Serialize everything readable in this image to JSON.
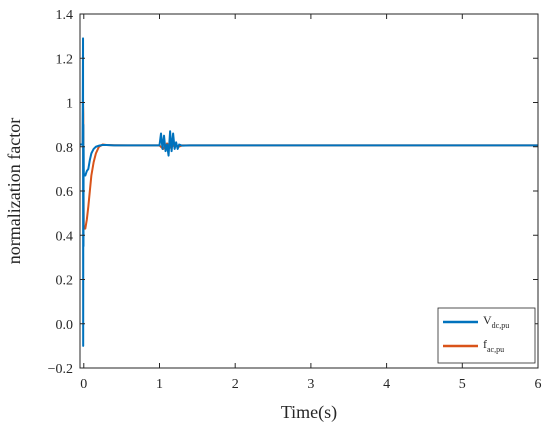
{
  "chart_data": {
    "type": "line",
    "title": "",
    "xlabel": "Time(s)",
    "ylabel": "normalization factor",
    "xlim": [
      -0.05,
      6
    ],
    "ylim": [
      -0.2,
      1.4
    ],
    "xticks": [
      "0",
      "1",
      "2",
      "3",
      "4",
      "5",
      "6"
    ],
    "yticks": [
      "−0.2",
      "0.0",
      "0.2",
      "0.4",
      "0.6",
      "0.8",
      "1",
      "1.2",
      "1.4"
    ],
    "grid": false,
    "legend_position": "bottom-right",
    "series": [
      {
        "name": "V",
        "name_sub": "dc,pu",
        "color": "#0072BD",
        "x": [
          -0.05,
          -0.03,
          -0.02,
          -0.015,
          -0.01,
          -0.008,
          -0.006,
          -0.004,
          -0.002,
          0.0,
          0.01,
          0.02,
          0.04,
          0.06,
          0.08,
          0.1,
          0.13,
          0.16,
          0.2,
          0.25,
          0.3,
          0.4,
          0.6,
          0.8,
          1.0,
          1.02,
          1.04,
          1.06,
          1.08,
          1.1,
          1.12,
          1.14,
          1.16,
          1.18,
          1.2,
          1.22,
          1.24,
          1.26,
          1.3,
          1.4,
          2.0,
          3.0,
          4.0,
          5.0,
          6.0
        ],
        "y": [
          0.81,
          0.81,
          0.81,
          0.81,
          1.29,
          -0.1,
          0.9,
          0.35,
          0.8,
          0.68,
          0.67,
          0.67,
          0.69,
          0.7,
          0.74,
          0.77,
          0.79,
          0.8,
          0.805,
          0.808,
          0.808,
          0.806,
          0.806,
          0.806,
          0.806,
          0.86,
          0.79,
          0.85,
          0.78,
          0.81,
          0.76,
          0.87,
          0.78,
          0.86,
          0.79,
          0.82,
          0.79,
          0.81,
          0.805,
          0.806,
          0.806,
          0.806,
          0.806,
          0.806,
          0.806
        ]
      },
      {
        "name": "f",
        "name_sub": "ac,pu",
        "color": "#D95319",
        "x": [
          -0.05,
          -0.03,
          -0.02,
          -0.015,
          -0.01,
          -0.007,
          -0.004,
          0.0,
          0.02,
          0.04,
          0.06,
          0.08,
          0.1,
          0.13,
          0.16,
          0.2,
          0.25,
          0.3,
          0.4,
          0.6,
          1.0,
          1.05,
          1.1,
          1.15,
          1.2,
          1.25,
          1.3,
          2.0,
          3.0,
          4.0,
          5.0,
          6.0
        ],
        "y": [
          0.81,
          0.81,
          0.81,
          0.81,
          1.0,
          0.95,
          0.6,
          0.43,
          0.43,
          0.47,
          0.53,
          0.6,
          0.67,
          0.73,
          0.77,
          0.8,
          0.81,
          0.808,
          0.807,
          0.806,
          0.806,
          0.79,
          0.815,
          0.795,
          0.812,
          0.8,
          0.806,
          0.806,
          0.806,
          0.806,
          0.806,
          0.806
        ]
      }
    ]
  }
}
